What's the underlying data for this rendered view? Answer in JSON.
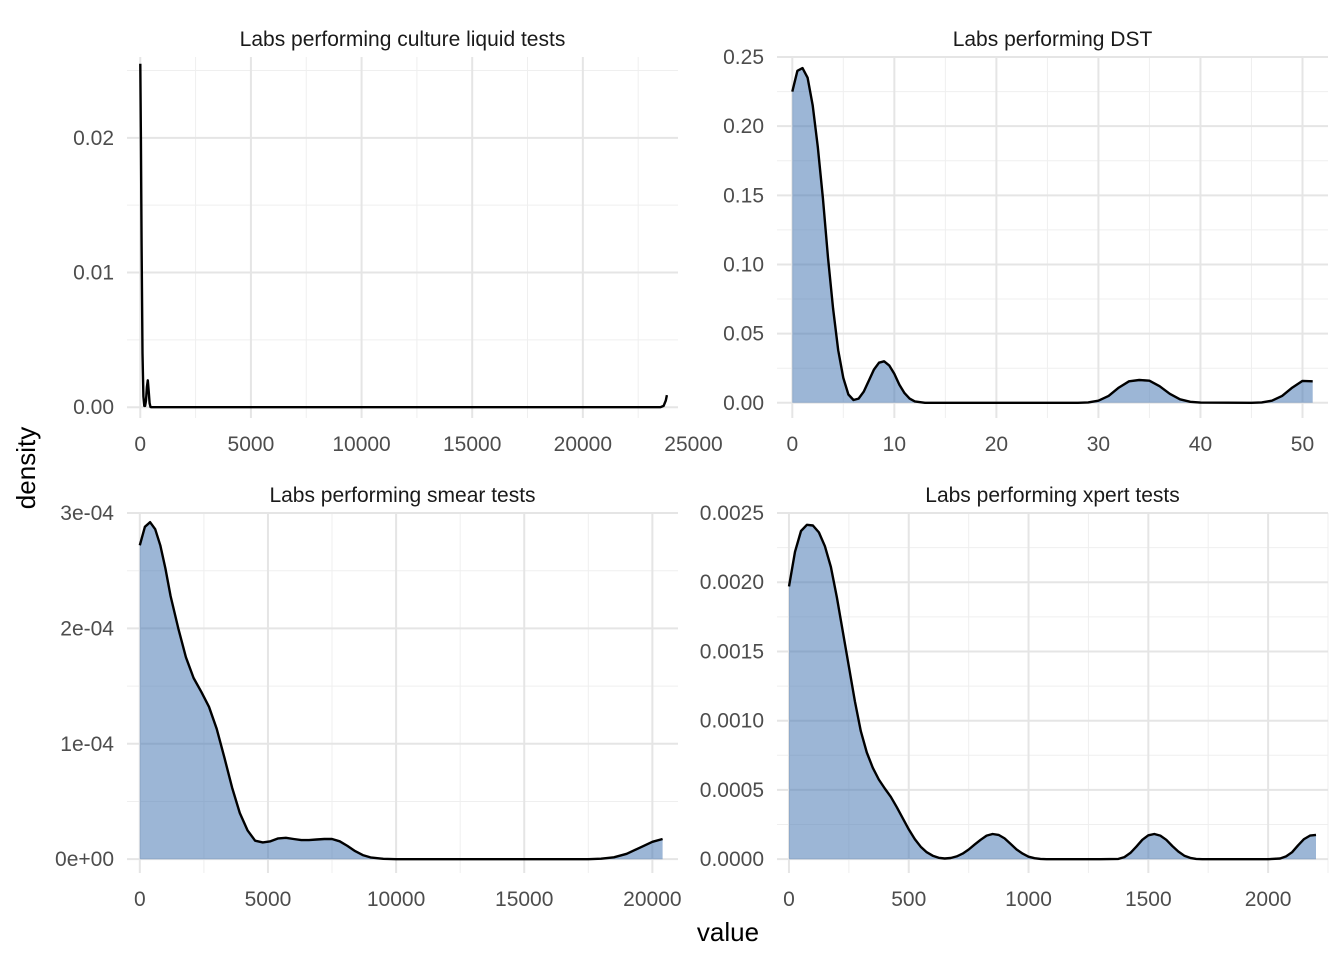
{
  "figure": {
    "xlabel": "value",
    "ylabel": "density",
    "fill_color": "#4a7ab5",
    "fill_opacity": 0.55,
    "line_color": "#000000"
  },
  "chart_data": [
    {
      "type": "area",
      "title": "Labs performing culture liquid tests",
      "xlabel": "value",
      "ylabel": "density",
      "xlim": [
        -600,
        24300
      ],
      "ylim": [
        -0.0008,
        0.026
      ],
      "x_ticks": [
        0,
        5000,
        10000,
        15000,
        20000,
        25000
      ],
      "x_tick_labels": [
        "0",
        "5000",
        "10000",
        "15000",
        "20000",
        "25000"
      ],
      "y_ticks": [
        0,
        0.01,
        0.02
      ],
      "y_tick_labels": [
        "0.00",
        "0.01",
        "0.02"
      ],
      "grid": true,
      "filled": false,
      "x": [
        0,
        30,
        60,
        100,
        140,
        180,
        220,
        260,
        300,
        340,
        380,
        420,
        460,
        500,
        1000,
        5000,
        10000,
        15000,
        20000,
        23500,
        23650,
        23750,
        23800
      ],
      "y": [
        0.0255,
        0.02,
        0.012,
        0.004,
        0.0008,
        0.0001,
        0.0001,
        0.0005,
        0.0015,
        0.002,
        0.0012,
        0.0003,
        2e-05,
        0,
        0,
        0,
        0,
        0,
        0,
        0,
        0.0001,
        0.0005,
        0.0009
      ]
    },
    {
      "type": "area",
      "title": "Labs performing DST",
      "xlabel": "value",
      "ylabel": "density",
      "xlim": [
        -1.5,
        52.5
      ],
      "ylim": [
        -0.011,
        0.25
      ],
      "x_ticks": [
        0,
        10,
        20,
        30,
        40,
        50
      ],
      "x_tick_labels": [
        "0",
        "10",
        "20",
        "30",
        "40",
        "50"
      ],
      "y_ticks": [
        0,
        0.05,
        0.1,
        0.15,
        0.2,
        0.25
      ],
      "y_tick_labels": [
        "0.00",
        "0.05",
        "0.10",
        "0.15",
        "0.20",
        "0.25"
      ],
      "grid": true,
      "filled": true,
      "x": [
        0,
        0.5,
        1,
        1.5,
        2,
        2.5,
        3,
        3.5,
        4,
        4.5,
        5,
        5.5,
        6,
        6.5,
        7,
        7.5,
        8,
        8.5,
        9,
        9.5,
        10,
        10.5,
        11,
        11.5,
        12,
        13,
        14,
        15,
        20,
        28,
        29,
        30,
        31,
        32,
        33,
        34,
        35,
        36,
        37,
        38,
        39,
        40,
        45,
        46,
        47,
        48,
        49,
        50,
        51
      ],
      "y": [
        0.225,
        0.24,
        0.242,
        0.235,
        0.215,
        0.185,
        0.148,
        0.105,
        0.068,
        0.038,
        0.018,
        0.006,
        0.002,
        0.003,
        0.008,
        0.016,
        0.024,
        0.029,
        0.03,
        0.027,
        0.021,
        0.013,
        0.007,
        0.003,
        0.001,
        0,
        0,
        0,
        0,
        0,
        0.0003,
        0.0015,
        0.005,
        0.011,
        0.0155,
        0.0165,
        0.016,
        0.012,
        0.0065,
        0.0025,
        0.0007,
        0.0001,
        0,
        0.0003,
        0.0015,
        0.005,
        0.011,
        0.0158,
        0.0155
      ]
    },
    {
      "type": "area",
      "title": "Labs performing smear tests",
      "xlabel": "value",
      "ylabel": "density",
      "xlim": [
        -500,
        21000
      ],
      "ylim": [
        -1.2e-05,
        0.0003
      ],
      "x_ticks": [
        0,
        5000,
        10000,
        15000,
        20000
      ],
      "x_tick_labels": [
        "0",
        "5000",
        "10000",
        "15000",
        "20000"
      ],
      "y_ticks": [
        0,
        0.0001,
        0.0002,
        0.0003
      ],
      "y_tick_labels": [
        "0e+00",
        "1e-04",
        "2e-04",
        "3e-04"
      ],
      "grid": true,
      "filled": true,
      "x": [
        0,
        200,
        400,
        600,
        800,
        1000,
        1200,
        1500,
        1800,
        2100,
        2400,
        2700,
        3000,
        3300,
        3600,
        3900,
        4200,
        4500,
        4800,
        5100,
        5400,
        5700,
        6000,
        6300,
        6600,
        6900,
        7200,
        7500,
        7800,
        8100,
        8400,
        8700,
        9000,
        9500,
        10000,
        17500,
        18000,
        18500,
        19000,
        19500,
        20000,
        20400
      ],
      "y": [
        0.000272,
        0.000288,
        0.000292,
        0.000286,
        0.000272,
        0.000252,
        0.000228,
        0.0002,
        0.000175,
        0.000157,
        0.000145,
        0.000132,
        0.000113,
        8.8e-05,
        6.2e-05,
        4e-05,
        2.5e-05,
        1.6e-05,
        1.45e-05,
        1.55e-05,
        1.8e-05,
        1.85e-05,
        1.75e-05,
        1.65e-05,
        1.65e-05,
        1.7e-05,
        1.75e-05,
        1.75e-05,
        1.55e-05,
        1.15e-05,
        7e-06,
        3.5e-06,
        1.5e-06,
        3e-07,
        0,
        0,
        4e-07,
        1.6e-06,
        4.6e-06,
        9.8e-06,
        1.5e-05,
        1.75e-05
      ]
    },
    {
      "type": "area",
      "title": "Labs performing xpert tests",
      "xlabel": "value",
      "ylabel": "density",
      "xlim": [
        -50,
        2250
      ],
      "ylim": [
        -0.0001,
        0.0025
      ],
      "x_ticks": [
        0,
        500,
        1000,
        1500,
        2000
      ],
      "x_tick_labels": [
        "0",
        "500",
        "1000",
        "1500",
        "2000"
      ],
      "y_ticks": [
        0,
        0.0005,
        0.001,
        0.0015,
        0.002,
        0.0025
      ],
      "y_tick_labels": [
        "0.0000",
        "0.0005",
        "0.0010",
        "0.0015",
        "0.0020",
        "0.0025"
      ],
      "grid": true,
      "filled": true,
      "x": [
        0,
        25,
        50,
        75,
        100,
        125,
        150,
        175,
        200,
        225,
        250,
        275,
        300,
        325,
        350,
        375,
        400,
        425,
        450,
        475,
        500,
        525,
        550,
        575,
        600,
        625,
        650,
        675,
        700,
        725,
        750,
        775,
        800,
        825,
        850,
        875,
        900,
        925,
        950,
        975,
        1000,
        1025,
        1050,
        1075,
        1100,
        1150,
        1200,
        1300,
        1375,
        1400,
        1425,
        1450,
        1475,
        1500,
        1525,
        1550,
        1575,
        1600,
        1625,
        1650,
        1675,
        1700,
        1725,
        1750,
        2000,
        2050,
        2075,
        2100,
        2125,
        2150,
        2175,
        2200
      ],
      "y": [
        0.00197,
        0.00222,
        0.00237,
        0.002415,
        0.00241,
        0.00236,
        0.00226,
        0.00211,
        0.00189,
        0.00164,
        0.00139,
        0.00114,
        0.000925,
        0.00077,
        0.00066,
        0.000575,
        0.00051,
        0.00045,
        0.000375,
        0.000295,
        0.000215,
        0.000145,
        9e-05,
        5e-05,
        2.5e-05,
        1e-05,
        5e-06,
        8e-06,
        2e-05,
        4e-05,
        7e-05,
        0.000105,
        0.00014,
        0.00017,
        0.000182,
        0.000175,
        0.00015,
        0.00011,
        7e-05,
        4e-05,
        1.8e-05,
        7e-06,
        2e-06,
        0,
        0,
        0,
        0,
        0,
        2e-06,
        1.5e-05,
        4.5e-05,
        9e-05,
        0.00014,
        0.000172,
        0.000182,
        0.00017,
        0.00014,
        9.5e-05,
        5.5e-05,
        2.5e-05,
        9e-06,
        2e-06,
        0,
        0,
        0,
        5e-06,
        2e-05,
        5e-05,
        0.0001,
        0.000145,
        0.00017,
        0.000175
      ]
    }
  ]
}
